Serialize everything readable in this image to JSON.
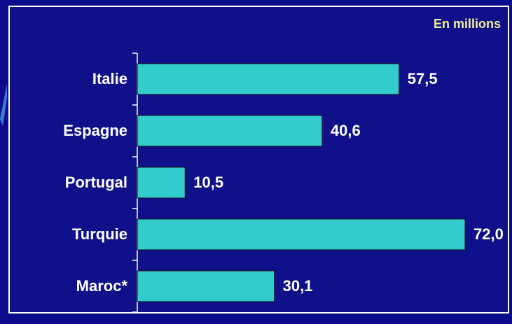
{
  "chart_data": {
    "type": "bar",
    "orientation": "horizontal",
    "unit_label": "En millions",
    "categories": [
      "Italie",
      "Espagne",
      "Portugal",
      "Turquie",
      "Maroc*"
    ],
    "values": [
      57.5,
      40.6,
      10.5,
      72.0,
      30.1
    ],
    "value_labels": [
      "57,5",
      "40,6",
      "10,5",
      "72,0",
      "30,1"
    ],
    "xlim": [
      0,
      72
    ],
    "bar_color": "#33cccc",
    "background_color": "#10108a",
    "text_color": "#ffffff",
    "unit_label_color": "#f2ee9a",
    "grid": false
  }
}
